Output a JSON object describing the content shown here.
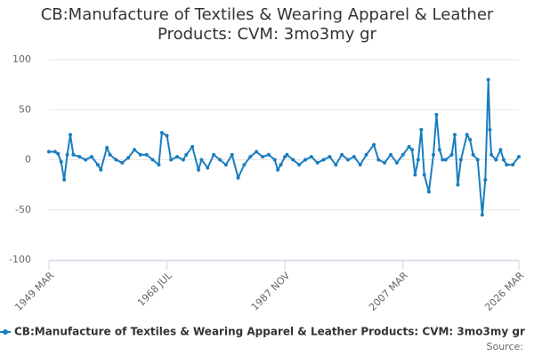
{
  "chart_data": {
    "type": "line",
    "title": "CB:Manufacture of Textiles & Wearing Apparel & Leather Products: CVM: 3mo3my gr",
    "source": "Source:",
    "x": [
      "1949-03",
      "1950-03",
      "1950-09",
      "1951-03",
      "1951-09",
      "1952-03",
      "1952-09",
      "1953-03",
      "1954-03",
      "1955-03",
      "1956-03",
      "1957-03",
      "1957-09",
      "1958-09",
      "1959-03",
      "1960-03",
      "1961-03",
      "1962-03",
      "1963-03",
      "1964-03",
      "1965-03",
      "1966-03",
      "1967-03",
      "1967-09",
      "1968-07",
      "1969-03",
      "1970-03",
      "1971-03",
      "1971-09",
      "1972-09",
      "1973-09",
      "1974-03",
      "1975-03",
      "1976-03",
      "1977-03",
      "1978-03",
      "1979-03",
      "1980-03",
      "1981-03",
      "1982-03",
      "1983-03",
      "1984-03",
      "1985-03",
      "1986-03",
      "1986-09",
      "1987-03",
      "1987-11",
      "1988-03",
      "1989-03",
      "1990-03",
      "1991-03",
      "1992-03",
      "1993-03",
      "1994-03",
      "1995-03",
      "1996-03",
      "1997-03",
      "1998-03",
      "1999-03",
      "2000-03",
      "2001-03",
      "2002-06",
      "2003-03",
      "2004-03",
      "2005-03",
      "2006-03",
      "2007-03",
      "2008-03",
      "2008-09",
      "2009-03",
      "2009-09",
      "2010-03",
      "2010-09",
      "2011-06",
      "2012-03",
      "2012-09",
      "2013-03",
      "2013-09",
      "2014-03",
      "2015-03",
      "2015-09",
      "2016-03",
      "2016-09",
      "2017-09",
      "2018-03",
      "2018-09",
      "2019-06",
      "2020-03",
      "2020-09",
      "2021-03",
      "2021-06",
      "2021-09",
      "2022-06",
      "2023-03",
      "2023-09",
      "2024-03",
      "2025-03",
      "2026-03"
    ],
    "series": [
      {
        "name": "CB:Manufacture of Textiles & Wearing Apparel & Leather Products: CVM: 3mo3my gr",
        "color": "#1a7dc0",
        "values": [
          8,
          8,
          6,
          -2,
          -20,
          5,
          25,
          5,
          3,
          0,
          3,
          -5,
          -10,
          12,
          5,
          0,
          -3,
          2,
          10,
          5,
          5,
          0,
          -5,
          27,
          24,
          0,
          3,
          0,
          5,
          13,
          -10,
          0,
          -8,
          5,
          0,
          -5,
          5,
          -18,
          -5,
          3,
          8,
          3,
          5,
          0,
          -10,
          -5,
          3,
          5,
          0,
          -5,
          0,
          3,
          -3,
          0,
          3,
          -5,
          5,
          0,
          3,
          -5,
          5,
          15,
          0,
          -3,
          5,
          -3,
          5,
          13,
          10,
          -15,
          0,
          30,
          -15,
          -32,
          5,
          45,
          10,
          0,
          0,
          5,
          25,
          -25,
          0,
          25,
          20,
          5,
          0,
          -55,
          -20,
          80,
          30,
          5,
          0,
          10,
          0,
          -5,
          -5,
          3
        ]
      }
    ],
    "xlim": [
      "1949-03",
      "2026-03"
    ],
    "xticks": [
      {
        "value": "1949-03",
        "label": "1949 MAR"
      },
      {
        "value": "1968-07",
        "label": "1968 JUL"
      },
      {
        "value": "1987-11",
        "label": "1987 NOV"
      },
      {
        "value": "2007-03",
        "label": "2007 MAR"
      },
      {
        "value": "2026-03",
        "label": "2026 MAR"
      }
    ],
    "ylim": [
      -100,
      100
    ],
    "yticks": [
      -100,
      -50,
      0,
      50,
      100
    ],
    "grid": true
  }
}
